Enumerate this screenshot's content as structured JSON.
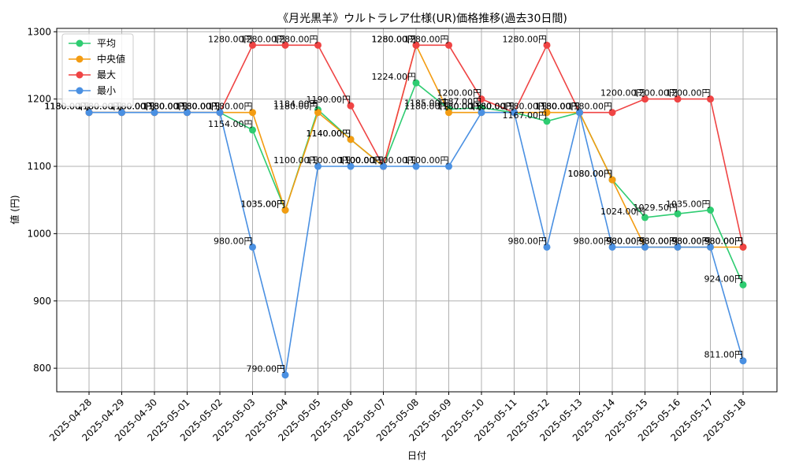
{
  "chart_data": {
    "type": "line",
    "title": "《月光黒羊》ウルトラレア仕様(UR)価格推移(過去30日間)",
    "xlabel": "日付",
    "ylabel": "値 (円)",
    "ylim": [
      765,
      1305
    ],
    "yticks": [
      800,
      900,
      1000,
      1100,
      1200,
      1300
    ],
    "grid": true,
    "legend_position": "top-left",
    "label_suffix": "円",
    "categories": [
      "2025-04-28",
      "2025-04-29",
      "2025-04-30",
      "2025-05-01",
      "2025-05-02",
      "2025-05-03",
      "2025-05-04",
      "2025-05-05",
      "2025-05-06",
      "2025-05-07",
      "2025-05-08",
      "2025-05-09",
      "2025-05-10",
      "2025-05-11",
      "2025-05-12",
      "2025-05-13",
      "2025-05-14",
      "2025-05-15",
      "2025-05-16",
      "2025-05-17",
      "2025-05-18"
    ],
    "series": [
      {
        "name": "平均",
        "color": "#2ecc71",
        "values": [
          1180,
          1180,
          1180,
          1180,
          1180,
          1154,
          1035,
          1184,
          1140,
          1100,
          1224,
          1185,
          1187,
          1180,
          1167,
          1180,
          1080,
          1024,
          1029.5,
          1035,
          924
        ]
      },
      {
        "name": "中央値",
        "color": "#f39c12",
        "values": [
          1180,
          1180,
          1180,
          1180,
          1180,
          1180,
          1035,
          1180,
          1140,
          1100,
          1280,
          1180,
          1180,
          1180,
          1180,
          1180,
          1080,
          980,
          980,
          980,
          980
        ]
      },
      {
        "name": "最大",
        "color": "#ef4444",
        "values": [
          1180,
          1180,
          1180,
          1180,
          1180,
          1280,
          1280,
          1280,
          1190,
          1100,
          1280,
          1280,
          1200,
          1180,
          1280,
          1180,
          1180,
          1200,
          1200,
          1200,
          980
        ]
      },
      {
        "name": "最小",
        "color": "#4a90e2",
        "values": [
          1180,
          1180,
          1180,
          1180,
          1180,
          980,
          790,
          1100,
          1100,
          1100,
          1100,
          1100,
          1180,
          1180,
          980,
          1180,
          980,
          980,
          980,
          980,
          811
        ]
      }
    ]
  }
}
